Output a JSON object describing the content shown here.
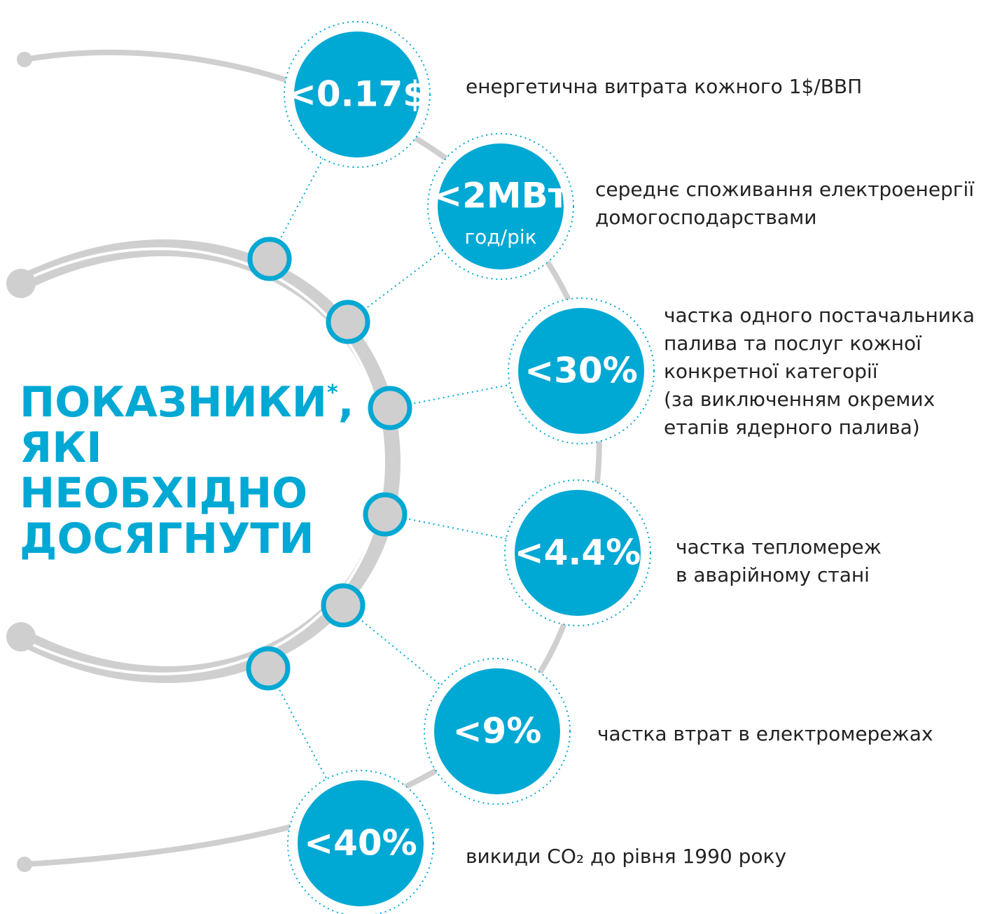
{
  "title": {
    "first": "ПОКАЗНИКИ",
    "asterisk": "*",
    "comma": ",",
    "rest": [
      "ЯКІ",
      "НЕОБХІДНО",
      "ДОСЯГНУТИ"
    ]
  },
  "items": [
    {
      "value": "<0.17$",
      "description": [
        "енергетична витрата кожного 1$/ВВП"
      ]
    },
    {
      "value": "<2МВт",
      "sub": "год/рік",
      "description": [
        "середнє споживання електроенергії",
        "домогосподарствами"
      ]
    },
    {
      "value": "<30%",
      "description": [
        "частка одного постачальника",
        "палива та послуг кожної",
        "конкретної категорії",
        "(за виключенням окремих",
        "етапів ядерного палива)"
      ]
    },
    {
      "value": "<4.4%",
      "description": [
        "частка тепломереж",
        "в аварійному стані"
      ]
    },
    {
      "value": "<9%",
      "description": [
        "частка втрат в електромережах"
      ]
    },
    {
      "value": "<40%",
      "description": [
        "викиди CO₂ до рівня 1990 року"
      ]
    }
  ]
}
